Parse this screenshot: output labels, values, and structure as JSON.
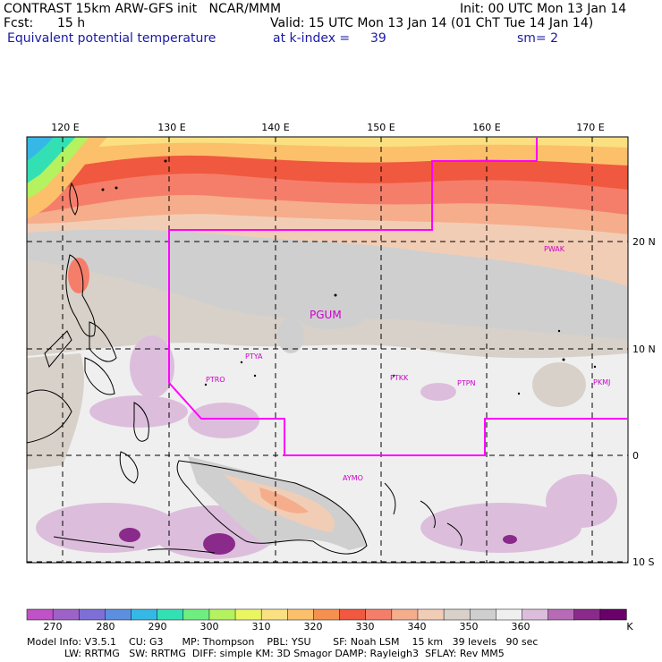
{
  "header": {
    "title": "CONTRAST 15km ARW-GFS init   NCAR/MMM",
    "init": "Init: 00 UTC Mon 13 Jan 14",
    "fcst_label": "Fcst:",
    "fcst_value": "15 h",
    "valid": "Valid: 15 UTC Mon 13 Jan 14 (01 ChT Tue 14 Jan 14)",
    "field": "Equivalent potential temperature",
    "level_label": "at k-index =",
    "level_value": "39",
    "smoothing": "sm= 2"
  },
  "map": {
    "lon_labels": [
      "120 E",
      "130 E",
      "140 E",
      "150 E",
      "160 E",
      "170 E"
    ],
    "lat_labels": [
      "20 N",
      "10 N",
      "0",
      "10 S"
    ],
    "stations": [
      {
        "id": "PGUM",
        "big": true
      },
      {
        "id": "PTYA"
      },
      {
        "id": "PTRO"
      },
      {
        "id": "PTKK"
      },
      {
        "id": "PTPN"
      },
      {
        "id": "PKMJ"
      },
      {
        "id": "PWAK"
      },
      {
        "id": "AYMO"
      }
    ],
    "colors": {
      "domain_outline": "#ff00ff",
      "grid": "#000000",
      "coast": "#000000",
      "station_label": "#cc00cc"
    }
  },
  "colorbar": {
    "tick_labels": [
      "270",
      "280",
      "290",
      "300",
      "310",
      "320",
      "330",
      "340",
      "350",
      "360"
    ],
    "unit": "K",
    "swatches": [
      "#c051c6",
      "#9d62c8",
      "#7e6fd8",
      "#5b8fe0",
      "#35b8e6",
      "#33e0b4",
      "#6fee80",
      "#b4f25f",
      "#eaf562",
      "#fae080",
      "#fcc06a",
      "#f5904f",
      "#f0583f",
      "#f57e6a",
      "#f5ad8c",
      "#f2cdb5",
      "#d8d1c9",
      "#cfcfcf",
      "#efefef",
      "#dcbedc",
      "#b76ab6",
      "#8a2a8a",
      "#6a006a"
    ]
  },
  "model_info": {
    "line1": "Model Info: V3.5.1    CU: G3      MP: Thompson    PBL: YSU       SF: Noah LSM    15 km   39 levels   90 sec",
    "line2": "            LW: RRTMG   SW: RRTMG  DIFF: simple KM: 3D Smagor DAMP: Rayleigh3  SFLAY: Rev MM5"
  }
}
